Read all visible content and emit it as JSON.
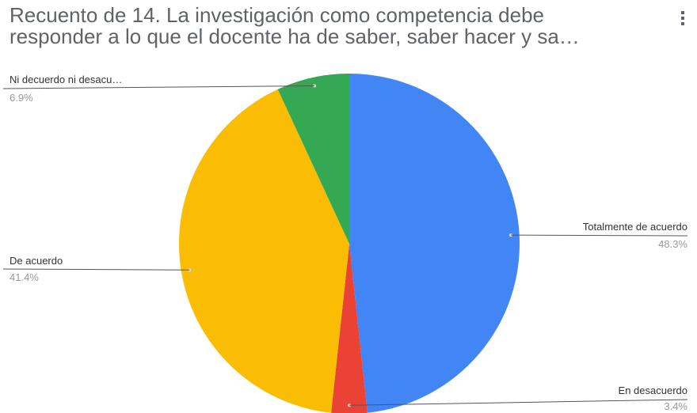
{
  "header": {
    "title_line1": "Recuento de 14.    La investigación como competencia debe",
    "title_line2": "responder a lo que el docente ha de saber, saber hacer y sa…"
  },
  "icons": {
    "menu": "more-vert-icon"
  },
  "chart_data": {
    "type": "pie",
    "title": "Recuento de 14.    La investigación como competencia debe responder a lo que el docente ha de saber, saber hacer y sa…",
    "slices": [
      {
        "label": "Totalmente de acuerdo",
        "pct_text": "48.3%",
        "value": 48.3,
        "color": "#4285f4"
      },
      {
        "label": "En desacuerdo",
        "pct_text": "3.4%",
        "value": 3.4,
        "color": "#ea4335"
      },
      {
        "label": "De acuerdo",
        "pct_text": "41.4%",
        "value": 41.4,
        "color": "#fbbc04"
      },
      {
        "label": "Ni decuerdo ni desacu…",
        "pct_text": "6.9%",
        "value": 6.9,
        "color": "#34a853"
      }
    ],
    "start_angle": "12 o'clock",
    "direction": "clockwise",
    "legend": "labels outside with leader lines"
  }
}
